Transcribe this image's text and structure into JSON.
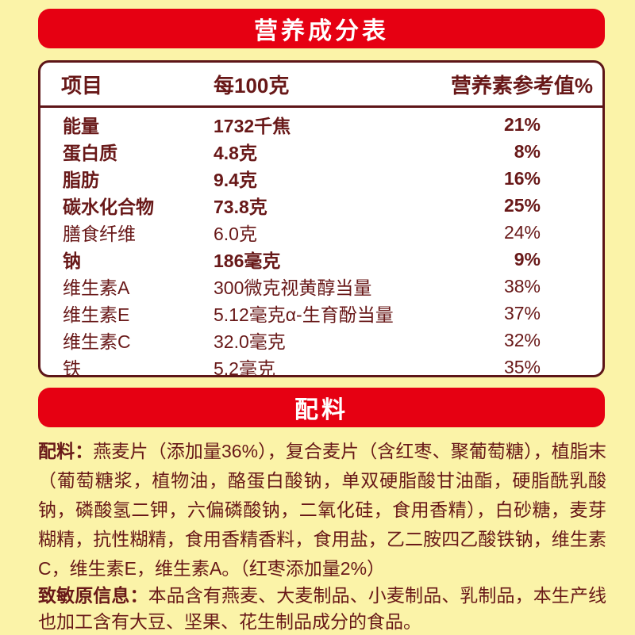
{
  "theme": {
    "background": "#FBF3A8",
    "banner_red": "#E60012",
    "border_maroon": "#5D1517",
    "text_maroon": "#681818",
    "table_background": "#FFFFFF"
  },
  "nutrition": {
    "title": "营养成分表",
    "columns": [
      "项目",
      "每100克",
      "营养素参考值%"
    ],
    "rows": [
      {
        "name": "能量",
        "amount": "1732千焦",
        "nrv": "21%",
        "bold": true
      },
      {
        "name": "蛋白质",
        "amount": "4.8克",
        "nrv": "8%",
        "bold": true
      },
      {
        "name": "脂肪",
        "amount": "9.4克",
        "nrv": "16%",
        "bold": true
      },
      {
        "name": "碳水化合物",
        "amount": "73.8克",
        "nrv": "25%",
        "bold": true
      },
      {
        "name": "膳食纤维",
        "amount": "6.0克",
        "nrv": "24%",
        "bold": false
      },
      {
        "name": "钠",
        "amount": "186毫克",
        "nrv": "9%",
        "bold": true
      },
      {
        "name": "维生素A",
        "amount": "300微克视黄醇当量",
        "nrv": "38%",
        "bold": false
      },
      {
        "name": "维生素E",
        "amount": "5.12毫克α-生育酚当量",
        "nrv": "37%",
        "bold": false
      },
      {
        "name": "维生素C",
        "amount": "32.0毫克",
        "nrv": "32%",
        "bold": false
      },
      {
        "name": "铁",
        "amount": "5.2毫克",
        "nrv": "35%",
        "bold": false
      }
    ]
  },
  "ingredients": {
    "title": "配料",
    "label": "配料：",
    "text": "燕麦片（添加量36%），复合麦片（含红枣、聚葡萄糖），植脂末（葡萄糖浆，植物油，酪蛋白酸钠，单双硬脂酸甘油酯，硬脂酰乳酸钠，磷酸氢二钾，六偏磷酸钠，二氧化硅，食用香精），白砂糖，麦芽糊精，抗性糊精，食用香精香料，食用盐，乙二胺四乙酸铁钠，维生素C，维生素E，维生素A。（红枣添加量2%）"
  },
  "allergen": {
    "label": "致敏原信息：",
    "text": "本品含有燕麦、大麦制品、小麦制品、乳制品，本生产线也加工含有大豆、坚果、花生制品成分的食品。"
  }
}
